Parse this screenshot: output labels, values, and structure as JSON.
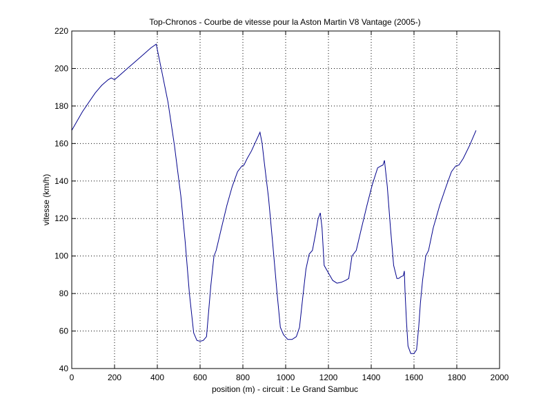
{
  "chart_data": {
    "type": "line",
    "title": "Top-Chronos - Courbe de vitesse pour la Aston Martin V8 Vantage (2005-)",
    "xlabel": "position (m) - circuit : Le Grand Sambuc",
    "ylabel": "vitesse (km/h)",
    "xlim": [
      0,
      2000
    ],
    "ylim": [
      40,
      220
    ],
    "xticks": [
      0,
      200,
      400,
      600,
      800,
      1000,
      1200,
      1400,
      1600,
      1800,
      2000
    ],
    "yticks": [
      40,
      60,
      80,
      100,
      120,
      140,
      160,
      180,
      200,
      220
    ],
    "grid": true,
    "line_color": "#00008b",
    "series": [
      {
        "x": [
          0,
          20,
          50,
          80,
          110,
          140,
          170,
          185,
          200,
          230,
          260,
          300,
          340,
          370,
          395,
          420,
          450,
          480,
          510,
          530,
          550,
          570,
          585,
          600,
          615,
          630,
          650,
          665,
          675,
          700,
          725,
          750,
          775,
          795,
          805,
          820,
          840,
          860,
          880,
          890,
          900,
          920,
          940,
          960,
          975,
          990,
          1010,
          1030,
          1050,
          1065,
          1080,
          1095,
          1110,
          1125,
          1140,
          1152,
          1162,
          1170,
          1180,
          1200,
          1220,
          1240,
          1260,
          1280,
          1295,
          1310,
          1330,
          1355,
          1380,
          1405,
          1430,
          1445,
          1455,
          1462,
          1475,
          1490,
          1505,
          1520,
          1528,
          1540,
          1550,
          1555,
          1558,
          1565,
          1572,
          1585,
          1600,
          1612,
          1622,
          1630,
          1640,
          1655,
          1668,
          1690,
          1720,
          1750,
          1775,
          1795,
          1810,
          1830,
          1860,
          1890
        ],
        "y": [
          167,
          171,
          177,
          182,
          187,
          191,
          194,
          195,
          194,
          197,
          200,
          204,
          208,
          211,
          213,
          199,
          182,
          159,
          132,
          108,
          80,
          59,
          55,
          54.5,
          55,
          57,
          84,
          100,
          103,
          115,
          127,
          137,
          145,
          148,
          148.5,
          152,
          156,
          161,
          166,
          160,
          150,
          131,
          106,
          80,
          62,
          58,
          55.5,
          55.5,
          57,
          62,
          78,
          93,
          101,
          103,
          112,
          120,
          123,
          115,
          95,
          91,
          87,
          85.5,
          86,
          87,
          88,
          100,
          103,
          115,
          127,
          138,
          147,
          148,
          148.5,
          151,
          137,
          115,
          95,
          88,
          88,
          89,
          89.5,
          92,
          81,
          65,
          52,
          48,
          48,
          50,
          62,
          75,
          87,
          100,
          103,
          115,
          127,
          137,
          145,
          148,
          148.5,
          152,
          159,
          167
        ]
      }
    ]
  }
}
